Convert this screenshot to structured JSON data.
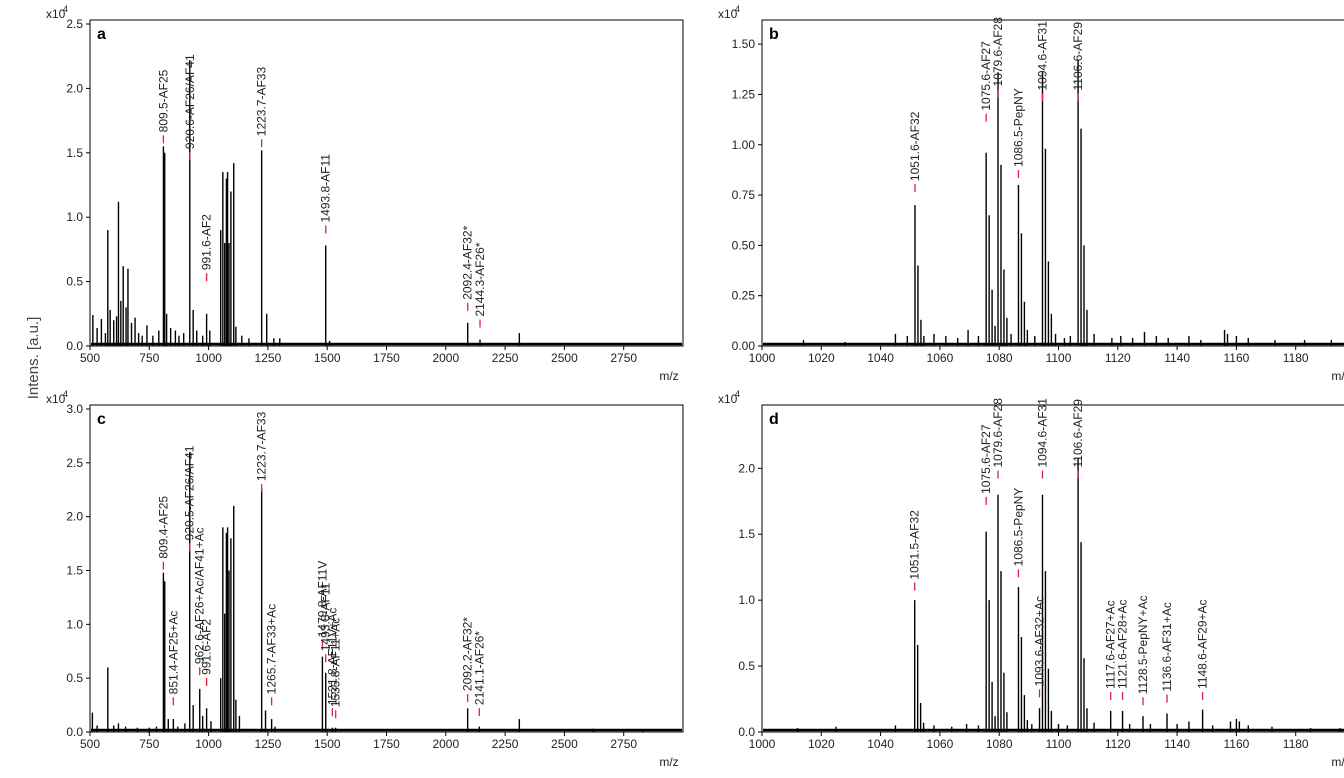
{
  "figure": {
    "shared_ylabel": "Intens. [a.u.]",
    "xunit": "m/z"
  },
  "chart_data": [
    {
      "type": "bar",
      "panel": "a",
      "scale_label": "x10",
      "scale_exp": "4",
      "xunit": "m/z",
      "xlim": [
        500,
        3000
      ],
      "ylim": [
        0,
        2.5
      ],
      "xticks": [
        500,
        750,
        1000,
        1250,
        1500,
        1750,
        2000,
        2250,
        2500,
        2750
      ],
      "yticks": [
        "0.0",
        "0.5",
        "1.0",
        "1.5",
        "2.0",
        "2.5"
      ],
      "peaks": [
        [
          512,
          0.24
        ],
        [
          530,
          0.14
        ],
        [
          548,
          0.21
        ],
        [
          565,
          0.1
        ],
        [
          575,
          0.9
        ],
        [
          585,
          0.28
        ],
        [
          600,
          0.2
        ],
        [
          612,
          0.23
        ],
        [
          620,
          1.12
        ],
        [
          630,
          0.35
        ],
        [
          640,
          0.62
        ],
        [
          652,
          0.3
        ],
        [
          660,
          0.6
        ],
        [
          675,
          0.18
        ],
        [
          690,
          0.22
        ],
        [
          705,
          0.1
        ],
        [
          720,
          0.08
        ],
        [
          740,
          0.16
        ],
        [
          765,
          0.08
        ],
        [
          790,
          0.12
        ],
        [
          809.5,
          1.55
        ],
        [
          815,
          1.5
        ],
        [
          823,
          0.25
        ],
        [
          840,
          0.14
        ],
        [
          860,
          0.12
        ],
        [
          875,
          0.08
        ],
        [
          895,
          0.1
        ],
        [
          920.6,
          2.22
        ],
        [
          935,
          0.28
        ],
        [
          950,
          0.12
        ],
        [
          975,
          0.08
        ],
        [
          991.6,
          0.25
        ],
        [
          1005,
          0.12
        ],
        [
          1051,
          0.9
        ],
        [
          1060,
          1.35
        ],
        [
          1068,
          0.8
        ],
        [
          1075,
          1.3
        ],
        [
          1080,
          1.35
        ],
        [
          1086,
          0.8
        ],
        [
          1094,
          1.2
        ],
        [
          1106,
          1.42
        ],
        [
          1115,
          0.15
        ],
        [
          1140,
          0.08
        ],
        [
          1170,
          0.06
        ],
        [
          1223.7,
          1.52
        ],
        [
          1245,
          0.25
        ],
        [
          1275,
          0.06
        ],
        [
          1300,
          0.06
        ],
        [
          1493.8,
          0.78
        ],
        [
          1510,
          0.04
        ],
        [
          2092.4,
          0.18
        ],
        [
          2144.3,
          0.05
        ],
        [
          2310,
          0.1
        ]
      ],
      "annotations": [
        {
          "text": "809.5-AF25",
          "x": 809.5,
          "y": 1.55
        },
        {
          "text": "920.6-AF26/AF41",
          "x": 920.6,
          "y": 1.42
        },
        {
          "text": "991.6-AF2",
          "x": 991.6,
          "y": 0.48
        },
        {
          "text": "1223.7-AF33",
          "x": 1223.7,
          "y": 1.52
        },
        {
          "text": "1493.8-AF11",
          "x": 1493.8,
          "y": 0.85
        },
        {
          "text": "2092.4-AF32*",
          "x": 2092.4,
          "y": 0.25
        },
        {
          "text": "2144.3-AF26*",
          "x": 2144.3,
          "y": 0.12
        }
      ]
    },
    {
      "type": "bar",
      "panel": "b",
      "scale_label": "x10",
      "scale_exp": "4",
      "xunit": "m/z",
      "xlim": [
        1000,
        1200
      ],
      "ylim": [
        0,
        1.6
      ],
      "xticks": [
        1000,
        1020,
        1040,
        1060,
        1080,
        1100,
        1120,
        1140,
        1160,
        1180
      ],
      "yticks": [
        "0.00",
        "0.25",
        "0.50",
        "0.75",
        "1.00",
        "1.25",
        "1.50"
      ],
      "peaks": [
        [
          1014,
          0.03
        ],
        [
          1028,
          0.02
        ],
        [
          1045,
          0.06
        ],
        [
          1049,
          0.05
        ],
        [
          1051.6,
          0.7
        ],
        [
          1052.6,
          0.4
        ],
        [
          1053.6,
          0.13
        ],
        [
          1054.6,
          0.05
        ],
        [
          1058,
          0.06
        ],
        [
          1062,
          0.05
        ],
        [
          1066,
          0.04
        ],
        [
          1069.5,
          0.08
        ],
        [
          1073,
          0.05
        ],
        [
          1075.6,
          0.96
        ],
        [
          1076.6,
          0.65
        ],
        [
          1077.6,
          0.28
        ],
        [
          1078.6,
          0.1
        ],
        [
          1079.6,
          1.36
        ],
        [
          1080.6,
          0.9
        ],
        [
          1081.6,
          0.38
        ],
        [
          1082.6,
          0.14
        ],
        [
          1084,
          0.06
        ],
        [
          1086.5,
          0.8
        ],
        [
          1087.5,
          0.56
        ],
        [
          1088.5,
          0.22
        ],
        [
          1089.5,
          0.08
        ],
        [
          1092,
          0.05
        ],
        [
          1094.6,
          1.36
        ],
        [
          1095.6,
          0.98
        ],
        [
          1096.6,
          0.42
        ],
        [
          1097.6,
          0.16
        ],
        [
          1099,
          0.06
        ],
        [
          1102,
          0.04
        ],
        [
          1104,
          0.05
        ],
        [
          1106.6,
          1.42
        ],
        [
          1107.6,
          1.08
        ],
        [
          1108.6,
          0.5
        ],
        [
          1109.6,
          0.18
        ],
        [
          1112,
          0.06
        ],
        [
          1118,
          0.04
        ],
        [
          1121,
          0.05
        ],
        [
          1125,
          0.04
        ],
        [
          1129,
          0.07
        ],
        [
          1133,
          0.05
        ],
        [
          1137,
          0.04
        ],
        [
          1144,
          0.05
        ],
        [
          1148,
          0.03
        ],
        [
          1156,
          0.08
        ],
        [
          1157,
          0.06
        ],
        [
          1160,
          0.05
        ],
        [
          1164,
          0.04
        ],
        [
          1173,
          0.03
        ],
        [
          1183,
          0.03
        ],
        [
          1192,
          0.03
        ]
      ],
      "annotations": [
        {
          "text": "1051.6-AF32",
          "x": 1051.6,
          "y": 0.75
        },
        {
          "text": "1075.6-AF27",
          "x": 1075.6,
          "y": 1.1
        },
        {
          "text": "1079.6-AF28",
          "x": 1079.6,
          "y": 1.22
        },
        {
          "text": "1086.5-PepNY",
          "x": 1086.5,
          "y": 0.82
        },
        {
          "text": "1094.6-AF31",
          "x": 1094.6,
          "y": 1.2
        },
        {
          "text": "1106.6-AF29",
          "x": 1106.6,
          "y": 1.2
        }
      ]
    },
    {
      "type": "bar",
      "panel": "c",
      "scale_label": "x10",
      "scale_exp": "4",
      "xunit": "m/z",
      "xlim": [
        500,
        3000
      ],
      "ylim": [
        0,
        3.0
      ],
      "xticks": [
        500,
        750,
        1000,
        1250,
        1500,
        1750,
        2000,
        2250,
        2500,
        2750
      ],
      "yticks": [
        "0.0",
        "0.5",
        "1.0",
        "1.5",
        "2.0",
        "2.5",
        "3.0"
      ],
      "peaks": [
        [
          510,
          0.18
        ],
        [
          530,
          0.06
        ],
        [
          575,
          0.6
        ],
        [
          600,
          0.06
        ],
        [
          620,
          0.08
        ],
        [
          650,
          0.05
        ],
        [
          700,
          0.04
        ],
        [
          750,
          0.04
        ],
        [
          780,
          0.05
        ],
        [
          809.4,
          1.48
        ],
        [
          815,
          1.4
        ],
        [
          830,
          0.12
        ],
        [
          851.4,
          0.12
        ],
        [
          870,
          0.05
        ],
        [
          900,
          0.08
        ],
        [
          920.5,
          2.6
        ],
        [
          935,
          0.25
        ],
        [
          962.6,
          0.4
        ],
        [
          975,
          0.15
        ],
        [
          991.6,
          0.22
        ],
        [
          1010,
          0.1
        ],
        [
          1051,
          0.5
        ],
        [
          1060,
          1.9
        ],
        [
          1068,
          1.1
        ],
        [
          1075,
          1.85
        ],
        [
          1080,
          1.9
        ],
        [
          1086,
          1.5
        ],
        [
          1094,
          1.8
        ],
        [
          1106,
          2.1
        ],
        [
          1115,
          0.3
        ],
        [
          1130,
          0.15
        ],
        [
          1223.7,
          2.26
        ],
        [
          1240,
          0.2
        ],
        [
          1265.7,
          0.12
        ],
        [
          1280,
          0.05
        ],
        [
          1479.8,
          0.7
        ],
        [
          1493.8,
          0.55
        ],
        [
          1521.8,
          0.04
        ],
        [
          1535.8,
          0.04
        ],
        [
          2092.2,
          0.22
        ],
        [
          2141.1,
          0.05
        ],
        [
          2310,
          0.12
        ],
        [
          2620,
          0.03
        ],
        [
          2830,
          0.02
        ]
      ],
      "annotations": [
        {
          "text": "809.4-AF25",
          "x": 809.4,
          "y": 1.48
        },
        {
          "text": "851.4-AF25+Ac",
          "x": 851.4,
          "y": 0.22
        },
        {
          "text": "920.5-AF26/AF41",
          "x": 920.5,
          "y": 1.65
        },
        {
          "text": "962.6-AF26+Ac/AF41+Ac",
          "x": 962.6,
          "y": 0.5
        },
        {
          "text": "991.6-AF2",
          "x": 991.6,
          "y": 0.4
        },
        {
          "text": "1223.7-AF33",
          "x": 1223.7,
          "y": 2.2
        },
        {
          "text": "1265.7-AF33+Ac",
          "x": 1265.7,
          "y": 0.22
        },
        {
          "text": "1479.8-AF11V",
          "x": 1479.8,
          "y": 0.75
        },
        {
          "text": "1493.8-AF11",
          "x": 1493.8,
          "y": 0.62
        },
        {
          "text": "1521.8-AF11V+Ac",
          "x": 1521.8,
          "y": 0.12
        },
        {
          "text": "1535.8-AF11+Ac",
          "x": 1535.8,
          "y": 0.1
        },
        {
          "text": "2092.2-AF32*",
          "x": 2092.2,
          "y": 0.25
        },
        {
          "text": "2141.1-AF26*",
          "x": 2141.1,
          "y": 0.12
        }
      ]
    },
    {
      "type": "bar",
      "panel": "d",
      "scale_label": "x10",
      "scale_exp": "4",
      "xunit": "m/z",
      "xlim": [
        1000,
        1200
      ],
      "ylim": [
        0,
        2.45
      ],
      "xticks": [
        1000,
        1020,
        1040,
        1060,
        1080,
        1100,
        1120,
        1140,
        1160,
        1180
      ],
      "yticks": [
        "0.0",
        "0.5",
        "1.0",
        "1.5",
        "2.0"
      ],
      "peaks": [
        [
          1012,
          0.03
        ],
        [
          1025,
          0.04
        ],
        [
          1045,
          0.05
        ],
        [
          1051.5,
          1.0
        ],
        [
          1052.5,
          0.66
        ],
        [
          1053.5,
          0.22
        ],
        [
          1054.5,
          0.07
        ],
        [
          1058,
          0.05
        ],
        [
          1064,
          0.04
        ],
        [
          1069,
          0.06
        ],
        [
          1073,
          0.05
        ],
        [
          1075.6,
          1.52
        ],
        [
          1076.6,
          1.0
        ],
        [
          1077.6,
          0.38
        ],
        [
          1078.6,
          0.12
        ],
        [
          1079.6,
          1.8
        ],
        [
          1080.6,
          1.22
        ],
        [
          1081.6,
          0.45
        ],
        [
          1082.6,
          0.15
        ],
        [
          1086.5,
          1.1
        ],
        [
          1087.5,
          0.72
        ],
        [
          1088.5,
          0.28
        ],
        [
          1089.5,
          0.09
        ],
        [
          1091,
          0.06
        ],
        [
          1093.6,
          0.18
        ],
        [
          1094.6,
          1.8
        ],
        [
          1095.6,
          1.22
        ],
        [
          1096.6,
          0.48
        ],
        [
          1097.6,
          0.16
        ],
        [
          1100,
          0.06
        ],
        [
          1103,
          0.05
        ],
        [
          1106.6,
          2.08
        ],
        [
          1107.6,
          1.44
        ],
        [
          1108.6,
          0.56
        ],
        [
          1109.6,
          0.18
        ],
        [
          1112,
          0.07
        ],
        [
          1117.6,
          0.16
        ],
        [
          1121.6,
          0.16
        ],
        [
          1124,
          0.06
        ],
        [
          1128.5,
          0.12
        ],
        [
          1131,
          0.06
        ],
        [
          1136.6,
          0.14
        ],
        [
          1140,
          0.06
        ],
        [
          1144,
          0.08
        ],
        [
          1148.6,
          0.17
        ],
        [
          1152,
          0.05
        ],
        [
          1158,
          0.08
        ],
        [
          1160,
          0.1
        ],
        [
          1161,
          0.08
        ],
        [
          1164,
          0.05
        ],
        [
          1172,
          0.04
        ],
        [
          1185,
          0.03
        ],
        [
          1195,
          0.03
        ]
      ],
      "annotations": [
        {
          "text": "1051.5-AF32",
          "x": 1051.5,
          "y": 1.05
        },
        {
          "text": "1075.6-AF27",
          "x": 1075.6,
          "y": 1.7
        },
        {
          "text": "1079.6-AF28",
          "x": 1079.6,
          "y": 1.9
        },
        {
          "text": "1086.5-PepNY",
          "x": 1086.5,
          "y": 1.15
        },
        {
          "text": "1093.6-AF32+Ac",
          "x": 1093.6,
          "y": 0.24
        },
        {
          "text": "1094.6-AF31",
          "x": 1094.6,
          "y": 1.9
        },
        {
          "text": "1106.6-AF29",
          "x": 1106.6,
          "y": 1.9
        },
        {
          "text": "1117.6-AF27+Ac",
          "x": 1117.6,
          "y": 0.22
        },
        {
          "text": "1121.6-AF28+Ac",
          "x": 1121.6,
          "y": 0.22
        },
        {
          "text": "1128.5-PepNY+Ac",
          "x": 1128.5,
          "y": 0.18
        },
        {
          "text": "1136.6-AF31+Ac",
          "x": 1136.6,
          "y": 0.2
        },
        {
          "text": "1148.6-AF29+Ac",
          "x": 1148.6,
          "y": 0.22
        }
      ]
    }
  ]
}
